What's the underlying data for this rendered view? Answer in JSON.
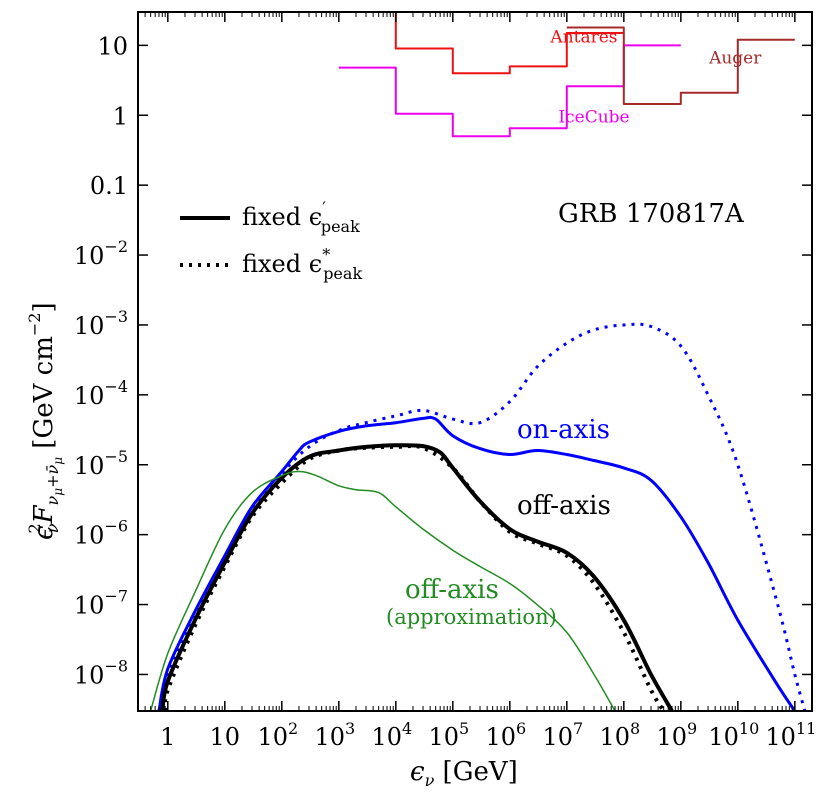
{
  "chart_data": {
    "type": "line",
    "title": "",
    "xscale": "log",
    "yscale": "log",
    "xlim": [
      0.3,
      200000000000
    ],
    "ylim": [
      3e-09,
      30
    ],
    "xlabel": {
      "main": "ϵ",
      "sub": "ν",
      "unit": " [GeV]"
    },
    "ylabel": {
      "main": "ϵ",
      "sub1": "ν",
      "sup": "2",
      "f": "F",
      "sub2": "ν",
      "sub3": "μ",
      "sub4": "+ν̄",
      "sub5": "μ",
      "unit": " [GeV cm",
      "unitsup": "−2",
      "unitend": "]"
    },
    "x_ticks": [
      {
        "value": 1,
        "base": "1",
        "exp": ""
      },
      {
        "value": 10,
        "base": "10",
        "exp": ""
      },
      {
        "value": 100,
        "base": "10",
        "exp": "2"
      },
      {
        "value": 1000,
        "base": "10",
        "exp": "3"
      },
      {
        "value": 10000,
        "base": "10",
        "exp": "4"
      },
      {
        "value": 100000,
        "base": "10",
        "exp": "5"
      },
      {
        "value": 1000000,
        "base": "10",
        "exp": "6"
      },
      {
        "value": 10000000,
        "base": "10",
        "exp": "7"
      },
      {
        "value": 100000000,
        "base": "10",
        "exp": "8"
      },
      {
        "value": 1000000000,
        "base": "10",
        "exp": "9"
      },
      {
        "value": 10000000000,
        "base": "10",
        "exp": "10"
      },
      {
        "value": 100000000000,
        "base": "10",
        "exp": "11"
      }
    ],
    "y_ticks": [
      {
        "value": 10,
        "base": "10",
        "exp": ""
      },
      {
        "value": 1,
        "base": "1",
        "exp": ""
      },
      {
        "value": 0.1,
        "base": "0.1",
        "exp": ""
      },
      {
        "value": 0.01,
        "base": "10",
        "exp": "−2"
      },
      {
        "value": 0.001,
        "base": "10",
        "exp": "−3"
      },
      {
        "value": 0.0001,
        "base": "10",
        "exp": "−4"
      },
      {
        "value": 1e-05,
        "base": "10",
        "exp": "−5"
      },
      {
        "value": 1e-06,
        "base": "10",
        "exp": "−6"
      },
      {
        "value": 1e-07,
        "base": "10",
        "exp": "−7"
      },
      {
        "value": 1e-08,
        "base": "10",
        "exp": "−8"
      }
    ],
    "legend": {
      "placement": "upper-left",
      "entries": [
        {
          "style": "solid",
          "label": "fixed ϵ",
          "sup": "′",
          "sub": "peak"
        },
        {
          "style": "dotted",
          "label": "fixed ϵ",
          "sup": "*",
          "sub": "peak"
        }
      ]
    },
    "annotations": {
      "grb": "GRB 170817A",
      "on_axis": "on-axis",
      "off_axis": "off-axis",
      "approx_title": "off-axis",
      "approx_sub": "(approximation)"
    },
    "colors": {
      "on_axis": "#0000ff",
      "off_axis": "#000000",
      "approx": "#228b22",
      "antares": "#ee1111",
      "icecube": "#ee00ee",
      "auger": "#a52a2a"
    },
    "series": [
      {
        "name": "on-axis (fixed ϵ′peak)",
        "color": "#0000ff",
        "style": "solid",
        "width": 3,
        "points": [
          [
            0.7,
            3e-09
          ],
          [
            1,
            1.2e-08
          ],
          [
            3,
            8e-08
          ],
          [
            10,
            5e-07
          ],
          [
            30,
            2.5e-06
          ],
          [
            100,
            8e-06
          ],
          [
            200,
            1.6e-05
          ],
          [
            300,
            2.1e-05
          ],
          [
            1000,
            3e-05
          ],
          [
            3000,
            3.6e-05
          ],
          [
            10000,
            4e-05
          ],
          [
            30000,
            4.6e-05
          ],
          [
            50000,
            4.5e-05
          ],
          [
            100000,
            2.6e-05
          ],
          [
            300000,
            1.7e-05
          ],
          [
            1000000,
            1.4e-05
          ],
          [
            3000000,
            1.6e-05
          ],
          [
            10000000,
            1.4e-05
          ],
          [
            30000000,
            1.15e-05
          ],
          [
            100000000,
            9e-06
          ],
          [
            300000000,
            6e-06
          ],
          [
            1000000000,
            1.8e-06
          ],
          [
            3000000000,
            4e-07
          ],
          [
            10000000000,
            6e-08
          ],
          [
            50000000000,
            7e-09
          ],
          [
            100000000000,
            3e-09
          ]
        ]
      },
      {
        "name": "on-axis (fixed ϵ*peak)",
        "color": "#0000ff",
        "style": "dotted",
        "width": 3,
        "points": [
          [
            0.7,
            3e-09
          ],
          [
            1,
            1e-08
          ],
          [
            3,
            7e-08
          ],
          [
            10,
            4.5e-07
          ],
          [
            30,
            2.2e-06
          ],
          [
            100,
            7.5e-06
          ],
          [
            300,
            1.8e-05
          ],
          [
            1000,
            3.1e-05
          ],
          [
            3000,
            4e-05
          ],
          [
            10000,
            5e-05
          ],
          [
            30000,
            6e-05
          ],
          [
            100000,
            4.5e-05
          ],
          [
            300000,
            4e-05
          ],
          [
            1000000,
            8e-05
          ],
          [
            3000000,
            0.00025
          ],
          [
            10000000,
            0.00055
          ],
          [
            30000000,
            0.00085
          ],
          [
            100000000,
            0.001
          ],
          [
            300000000,
            0.00095
          ],
          [
            1000000000,
            0.0005
          ],
          [
            3000000000,
            0.0001
          ],
          [
            10000000000,
            1e-05
          ],
          [
            50000000000,
            1e-07
          ],
          [
            100000000000,
            1e-08
          ],
          [
            150000000000,
            3e-09
          ]
        ]
      },
      {
        "name": "off-axis (fixed ϵ′peak)",
        "color": "#000000",
        "style": "solid",
        "width": 4,
        "points": [
          [
            0.8,
            3e-09
          ],
          [
            1,
            8e-09
          ],
          [
            3,
            6e-08
          ],
          [
            10,
            4e-07
          ],
          [
            30,
            2e-06
          ],
          [
            100,
            6.5e-06
          ],
          [
            300,
            1.3e-05
          ],
          [
            1000,
            1.6e-05
          ],
          [
            3000,
            1.8e-05
          ],
          [
            10000,
            1.9e-05
          ],
          [
            30000,
            1.85e-05
          ],
          [
            60000,
            1.5e-05
          ],
          [
            100000,
            9e-06
          ],
          [
            300000,
            3e-06
          ],
          [
            1000000,
            1.2e-06
          ],
          [
            3000000,
            8e-07
          ],
          [
            10000000,
            5.5e-07
          ],
          [
            30000000,
            2.5e-07
          ],
          [
            100000000,
            6e-08
          ],
          [
            300000000,
            1e-08
          ],
          [
            700000000,
            3e-09
          ]
        ]
      },
      {
        "name": "off-axis (fixed ϵ*peak)",
        "color": "#000000",
        "style": "dotted",
        "width": 4,
        "points": [
          [
            0.9,
            3e-09
          ],
          [
            1,
            6e-09
          ],
          [
            3,
            5e-08
          ],
          [
            10,
            3.5e-07
          ],
          [
            30,
            1.8e-06
          ],
          [
            100,
            5.5e-06
          ],
          [
            300,
            1.2e-05
          ],
          [
            1000,
            1.6e-05
          ],
          [
            3000,
            1.75e-05
          ],
          [
            10000,
            1.8e-05
          ],
          [
            30000,
            1.75e-05
          ],
          [
            100000,
            9e-06
          ],
          [
            300000,
            3e-06
          ],
          [
            1000000,
            1.1e-06
          ],
          [
            3000000,
            7.5e-07
          ],
          [
            10000000,
            5e-07
          ],
          [
            30000000,
            2e-07
          ],
          [
            100000000,
            4e-08
          ],
          [
            300000000,
            6e-09
          ],
          [
            500000000,
            3e-09
          ]
        ]
      },
      {
        "name": "off-axis (approximation)",
        "color": "#228b22",
        "style": "solid",
        "width": 1.5,
        "points": [
          [
            0.5,
            3e-09
          ],
          [
            1,
            2e-08
          ],
          [
            3,
            1.5e-07
          ],
          [
            10,
            1.2e-06
          ],
          [
            30,
            4e-06
          ],
          [
            100,
            7e-06
          ],
          [
            200,
            8e-06
          ],
          [
            400,
            7e-06
          ],
          [
            1000,
            5e-06
          ],
          [
            2000,
            4.4e-06
          ],
          [
            5000,
            4e-06
          ],
          [
            10000,
            2.5e-06
          ],
          [
            30000,
            1.2e-06
          ],
          [
            100000,
            6e-07
          ],
          [
            300000,
            3.5e-07
          ],
          [
            1000000,
            2e-07
          ],
          [
            3000000,
            1e-07
          ],
          [
            10000000,
            4e-08
          ],
          [
            30000000,
            1e-08
          ],
          [
            70000000,
            3e-09
          ]
        ]
      },
      {
        "name": "Antares",
        "color": "#ee1111",
        "style": "step",
        "width": 2,
        "points": [
          [
            10000,
            30
          ],
          [
            10000,
            9
          ],
          [
            100000,
            9
          ],
          [
            100000,
            4
          ],
          [
            1000000,
            4
          ],
          [
            1000000,
            5
          ],
          [
            10000000,
            5
          ],
          [
            10000000,
            15
          ],
          [
            100000000,
            15
          ]
        ]
      },
      {
        "name": "IceCube",
        "color": "#ee00ee",
        "style": "step",
        "width": 2,
        "points": [
          [
            1000,
            4.8
          ],
          [
            10000,
            4.8
          ],
          [
            10000,
            1.05
          ],
          [
            100000,
            1.05
          ],
          [
            100000,
            0.5
          ],
          [
            1000000,
            0.5
          ],
          [
            1000000,
            0.65
          ],
          [
            10000000,
            0.65
          ],
          [
            10000000,
            2.6
          ],
          [
            100000000,
            2.6
          ],
          [
            100000000,
            10
          ],
          [
            1000000000,
            10
          ]
        ]
      },
      {
        "name": "Auger",
        "color": "#a52a2a",
        "style": "step",
        "width": 2,
        "points": [
          [
            10000000,
            18
          ],
          [
            100000000,
            18
          ],
          [
            100000000,
            1.45
          ],
          [
            1000000000,
            1.45
          ],
          [
            1000000000,
            2.1
          ],
          [
            10000000000,
            2.1
          ],
          [
            10000000000,
            12
          ],
          [
            100000000000,
            12
          ]
        ]
      }
    ],
    "limit_labels": [
      {
        "name": "antares",
        "text": "Antares",
        "x": 20000000,
        "y": 9,
        "color": "#ee1111"
      },
      {
        "name": "icecube",
        "text": "IceCube",
        "x": 30000000,
        "y": 0.65,
        "color": "#ee00ee"
      },
      {
        "name": "auger",
        "text": "Auger",
        "x": 9000000000,
        "y": 4.5,
        "color": "#a52a2a"
      }
    ]
  }
}
